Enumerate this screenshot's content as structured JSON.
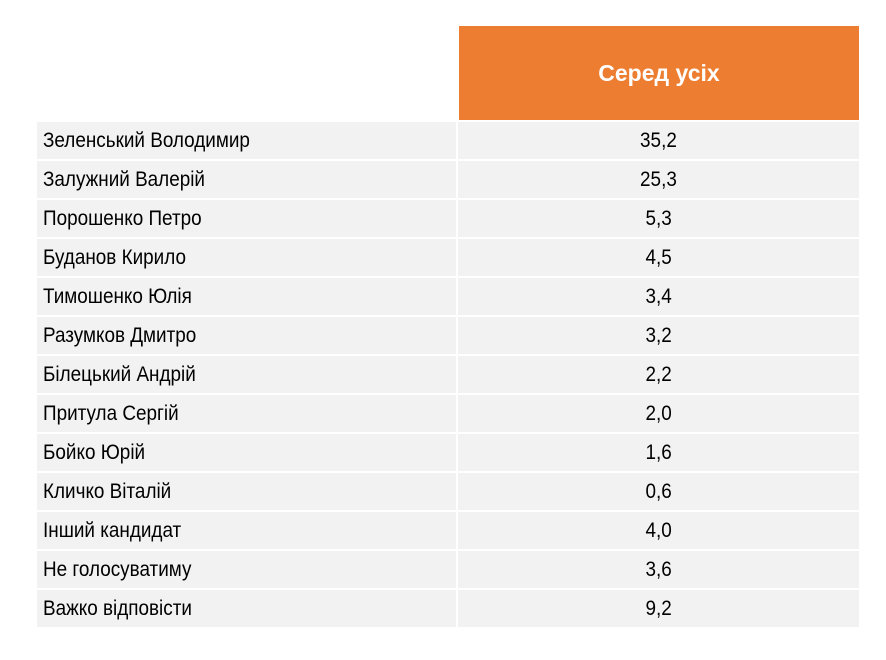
{
  "table": {
    "header": {
      "name_column": "",
      "value_column": "Серед усіх"
    },
    "accent_color": "#ed7d31",
    "rows": [
      {
        "name": "Зеленський Володимир",
        "value": "35,2"
      },
      {
        "name": "Залужний Валерій",
        "value": "25,3"
      },
      {
        "name": "Порошенко Петро",
        "value": "5,3"
      },
      {
        "name": "Буданов Кирило",
        "value": "4,5"
      },
      {
        "name": "Тимошенко Юлія",
        "value": "3,4"
      },
      {
        "name": "Разумков Дмитро",
        "value": "3,2"
      },
      {
        "name": "Білецький Андрій",
        "value": "2,2"
      },
      {
        "name": "Притула Сергій",
        "value": "2,0"
      },
      {
        "name": "Бойко Юрій",
        "value": "1,6"
      },
      {
        "name": "Кличко Віталій",
        "value": "0,6"
      },
      {
        "name": "Інший кандидат",
        "value": "4,0"
      },
      {
        "name": "Не голосуватиму",
        "value": "3,6"
      },
      {
        "name": "Важко відповісти",
        "value": "9,2"
      }
    ]
  }
}
